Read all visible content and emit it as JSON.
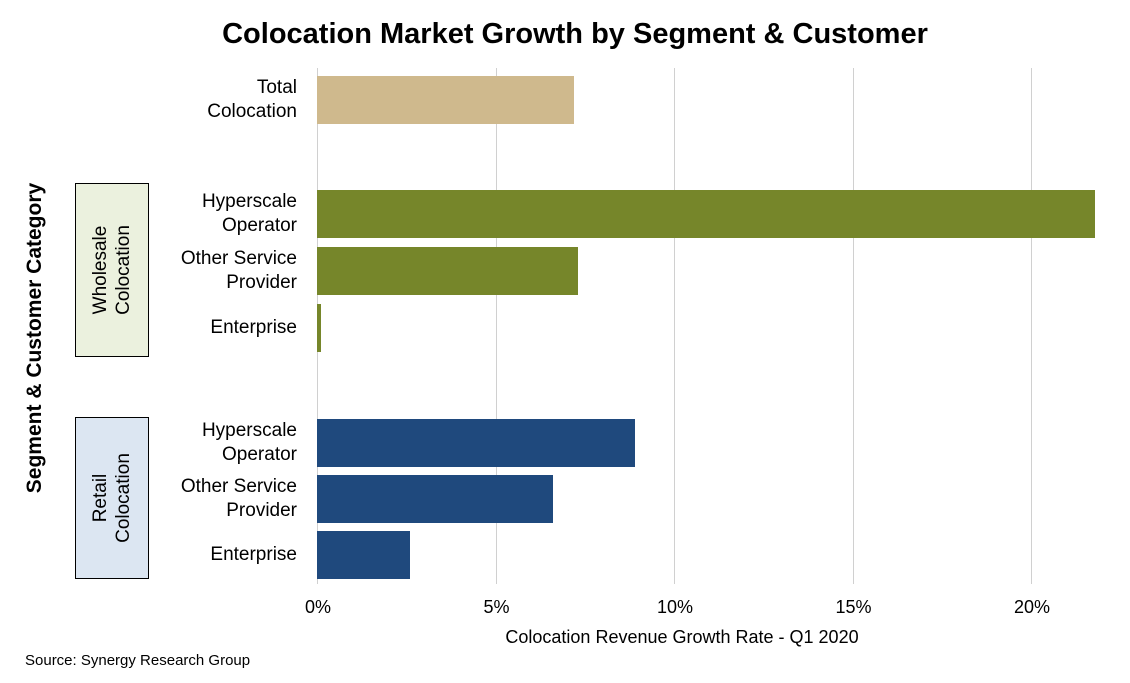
{
  "chart_data": {
    "type": "bar",
    "orientation": "horizontal",
    "title": "Colocation Market Growth by Segment & Customer",
    "xlabel": "Colocation Revenue Growth Rate - Q1 2020",
    "ylabel": "Segment & Customer Category",
    "xlim": [
      0,
      22
    ],
    "xticks": [
      "0%",
      "5%",
      "10%",
      "15%",
      "20%"
    ],
    "xtick_values": [
      0,
      5,
      10,
      15,
      20
    ],
    "grid": true,
    "groups": [
      {
        "name": "Wholesale\nColocation",
        "color": "#ebf1de"
      },
      {
        "name": "Retail\nColocation",
        "color": "#dce6f2"
      }
    ],
    "bars": [
      {
        "label": "Total\nColocation",
        "value": 7.2,
        "group": null,
        "color": "#cfb98d"
      },
      {
        "label": "Hyperscale\nOperator",
        "value": 21.8,
        "group": 0,
        "color": "#76862a"
      },
      {
        "label": "Other Service\nProvider",
        "value": 7.3,
        "group": 0,
        "color": "#76862a"
      },
      {
        "label": "Enterprise",
        "value": 0.1,
        "group": 0,
        "color": "#76862a"
      },
      {
        "label": "Hyperscale\nOperator",
        "value": 8.9,
        "group": 1,
        "color": "#1f497d"
      },
      {
        "label": "Other Service\nProvider",
        "value": 6.6,
        "group": 1,
        "color": "#1f497d"
      },
      {
        "label": "Enterprise",
        "value": 2.6,
        "group": 1,
        "color": "#1f497d"
      }
    ]
  },
  "source": "Source: Synergy Research Group"
}
